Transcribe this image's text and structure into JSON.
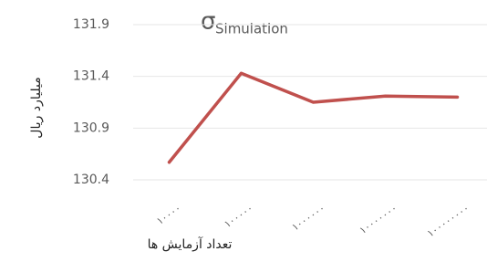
{
  "chart_data": {
    "type": "line",
    "title": {
      "symbol": "σ",
      "subscript": "Simulation"
    },
    "y_label": "میلیارد ریال",
    "x_label": "تعداد آزمایش ها",
    "categories": [
      "۱۰۰۰۰",
      "۱۰۰۰۰۰",
      "۱۰۰۰۰۰۰",
      "۱۰۰۰۰۰۰۰",
      "۱۰۰۰۰۰۰۰۰"
    ],
    "series": [
      {
        "name": "σ",
        "color": "#c0504d",
        "values": [
          130.57,
          131.43,
          131.15,
          131.21,
          131.2
        ]
      }
    ],
    "ylim": [
      130.4,
      131.9
    ],
    "yticks": [
      130.4,
      130.9,
      131.4,
      131.9
    ],
    "grid": true
  }
}
